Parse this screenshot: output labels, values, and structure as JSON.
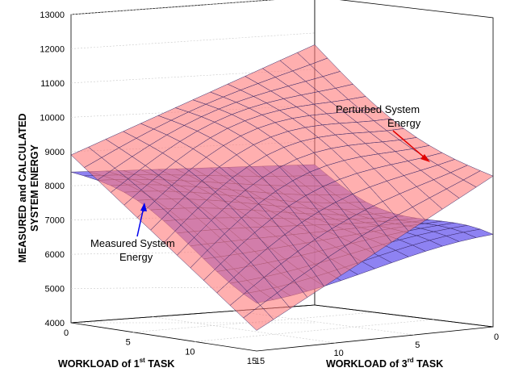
{
  "chart_data": {
    "type": "surface",
    "zlabel_line1": "MEASURED and CALCULATED",
    "zlabel_line2": "SYSTEM ENERGY",
    "xlabel": {
      "pre": "WORKLOAD of 1",
      "sup": "st",
      "post": " TASK"
    },
    "ylabel": {
      "pre": "WORKLOAD of 3",
      "sup": "rd",
      "post": " TASK"
    },
    "zlim": [
      4000,
      13000
    ],
    "zticks": [
      "4000",
      "5000",
      "6000",
      "7000",
      "8000",
      "9000",
      "10000",
      "11000",
      "12000",
      "13000"
    ],
    "xticks": [
      "0",
      "5",
      "10",
      "15"
    ],
    "yticks": [
      "15",
      "10",
      "5",
      "0"
    ],
    "grid": true,
    "series": [
      {
        "name": "Measured System Energy",
        "color": "#7a6cf0",
        "corners": {
          "near_x0_y15": 8400,
          "x15_y15": 5800,
          "x15_y0": 6300,
          "x0_y0": 8100
        }
      },
      {
        "name": "Perturbed System Energy",
        "color": "#ff7a7a",
        "corners": {
          "near_x0_y15": 8900,
          "x15_y15": 4600,
          "x15_y0": 8400,
          "x0_y0": 11600
        }
      }
    ],
    "annotations": [
      {
        "line1": "Perturbed System",
        "line2": "Energy",
        "color": "#e00000"
      },
      {
        "line1": "Measured System",
        "line2": "Energy",
        "color": "#0000ee"
      }
    ]
  }
}
